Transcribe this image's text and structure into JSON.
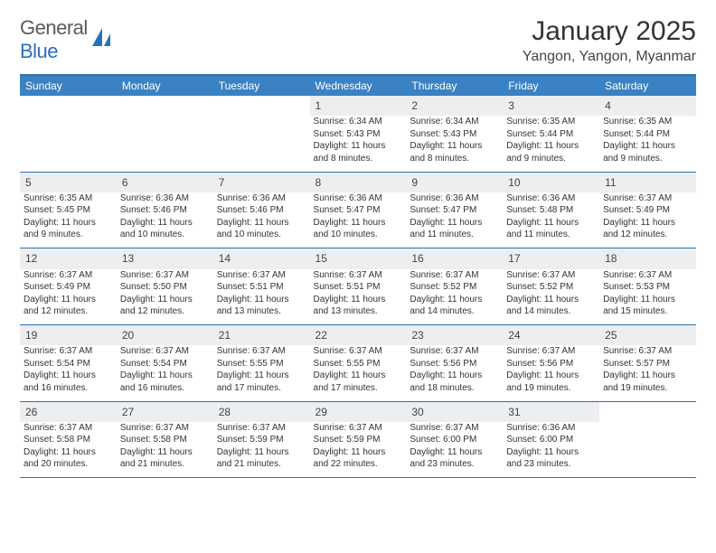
{
  "brand": {
    "name_part1": "General",
    "name_part2": "Blue"
  },
  "title": "January 2025",
  "location": "Yangon, Yangon, Myanmar",
  "colors": {
    "header_bg": "#3b82c4",
    "header_text": "#ffffff",
    "border": "#2b6fbb",
    "daynum_bg": "#eceeef",
    "text": "#333333",
    "logo_gray": "#5a5a5a",
    "logo_blue": "#2b6fbb",
    "page_bg": "#ffffff"
  },
  "typography": {
    "title_fontsize": 30,
    "location_fontsize": 16,
    "dayheader_fontsize": 12,
    "daynum_fontsize": 12,
    "body_fontsize": 10
  },
  "day_headers": [
    "Sunday",
    "Monday",
    "Tuesday",
    "Wednesday",
    "Thursday",
    "Friday",
    "Saturday"
  ],
  "weeks": [
    [
      null,
      null,
      null,
      {
        "n": "1",
        "sunrise": "Sunrise: 6:34 AM",
        "sunset": "Sunset: 5:43 PM",
        "daylight": "Daylight: 11 hours and 8 minutes."
      },
      {
        "n": "2",
        "sunrise": "Sunrise: 6:34 AM",
        "sunset": "Sunset: 5:43 PM",
        "daylight": "Daylight: 11 hours and 8 minutes."
      },
      {
        "n": "3",
        "sunrise": "Sunrise: 6:35 AM",
        "sunset": "Sunset: 5:44 PM",
        "daylight": "Daylight: 11 hours and 9 minutes."
      },
      {
        "n": "4",
        "sunrise": "Sunrise: 6:35 AM",
        "sunset": "Sunset: 5:44 PM",
        "daylight": "Daylight: 11 hours and 9 minutes."
      }
    ],
    [
      {
        "n": "5",
        "sunrise": "Sunrise: 6:35 AM",
        "sunset": "Sunset: 5:45 PM",
        "daylight": "Daylight: 11 hours and 9 minutes."
      },
      {
        "n": "6",
        "sunrise": "Sunrise: 6:36 AM",
        "sunset": "Sunset: 5:46 PM",
        "daylight": "Daylight: 11 hours and 10 minutes."
      },
      {
        "n": "7",
        "sunrise": "Sunrise: 6:36 AM",
        "sunset": "Sunset: 5:46 PM",
        "daylight": "Daylight: 11 hours and 10 minutes."
      },
      {
        "n": "8",
        "sunrise": "Sunrise: 6:36 AM",
        "sunset": "Sunset: 5:47 PM",
        "daylight": "Daylight: 11 hours and 10 minutes."
      },
      {
        "n": "9",
        "sunrise": "Sunrise: 6:36 AM",
        "sunset": "Sunset: 5:47 PM",
        "daylight": "Daylight: 11 hours and 11 minutes."
      },
      {
        "n": "10",
        "sunrise": "Sunrise: 6:36 AM",
        "sunset": "Sunset: 5:48 PM",
        "daylight": "Daylight: 11 hours and 11 minutes."
      },
      {
        "n": "11",
        "sunrise": "Sunrise: 6:37 AM",
        "sunset": "Sunset: 5:49 PM",
        "daylight": "Daylight: 11 hours and 12 minutes."
      }
    ],
    [
      {
        "n": "12",
        "sunrise": "Sunrise: 6:37 AM",
        "sunset": "Sunset: 5:49 PM",
        "daylight": "Daylight: 11 hours and 12 minutes."
      },
      {
        "n": "13",
        "sunrise": "Sunrise: 6:37 AM",
        "sunset": "Sunset: 5:50 PM",
        "daylight": "Daylight: 11 hours and 12 minutes."
      },
      {
        "n": "14",
        "sunrise": "Sunrise: 6:37 AM",
        "sunset": "Sunset: 5:51 PM",
        "daylight": "Daylight: 11 hours and 13 minutes."
      },
      {
        "n": "15",
        "sunrise": "Sunrise: 6:37 AM",
        "sunset": "Sunset: 5:51 PM",
        "daylight": "Daylight: 11 hours and 13 minutes."
      },
      {
        "n": "16",
        "sunrise": "Sunrise: 6:37 AM",
        "sunset": "Sunset: 5:52 PM",
        "daylight": "Daylight: 11 hours and 14 minutes."
      },
      {
        "n": "17",
        "sunrise": "Sunrise: 6:37 AM",
        "sunset": "Sunset: 5:52 PM",
        "daylight": "Daylight: 11 hours and 14 minutes."
      },
      {
        "n": "18",
        "sunrise": "Sunrise: 6:37 AM",
        "sunset": "Sunset: 5:53 PM",
        "daylight": "Daylight: 11 hours and 15 minutes."
      }
    ],
    [
      {
        "n": "19",
        "sunrise": "Sunrise: 6:37 AM",
        "sunset": "Sunset: 5:54 PM",
        "daylight": "Daylight: 11 hours and 16 minutes."
      },
      {
        "n": "20",
        "sunrise": "Sunrise: 6:37 AM",
        "sunset": "Sunset: 5:54 PM",
        "daylight": "Daylight: 11 hours and 16 minutes."
      },
      {
        "n": "21",
        "sunrise": "Sunrise: 6:37 AM",
        "sunset": "Sunset: 5:55 PM",
        "daylight": "Daylight: 11 hours and 17 minutes."
      },
      {
        "n": "22",
        "sunrise": "Sunrise: 6:37 AM",
        "sunset": "Sunset: 5:55 PM",
        "daylight": "Daylight: 11 hours and 17 minutes."
      },
      {
        "n": "23",
        "sunrise": "Sunrise: 6:37 AM",
        "sunset": "Sunset: 5:56 PM",
        "daylight": "Daylight: 11 hours and 18 minutes."
      },
      {
        "n": "24",
        "sunrise": "Sunrise: 6:37 AM",
        "sunset": "Sunset: 5:56 PM",
        "daylight": "Daylight: 11 hours and 19 minutes."
      },
      {
        "n": "25",
        "sunrise": "Sunrise: 6:37 AM",
        "sunset": "Sunset: 5:57 PM",
        "daylight": "Daylight: 11 hours and 19 minutes."
      }
    ],
    [
      {
        "n": "26",
        "sunrise": "Sunrise: 6:37 AM",
        "sunset": "Sunset: 5:58 PM",
        "daylight": "Daylight: 11 hours and 20 minutes."
      },
      {
        "n": "27",
        "sunrise": "Sunrise: 6:37 AM",
        "sunset": "Sunset: 5:58 PM",
        "daylight": "Daylight: 11 hours and 21 minutes."
      },
      {
        "n": "28",
        "sunrise": "Sunrise: 6:37 AM",
        "sunset": "Sunset: 5:59 PM",
        "daylight": "Daylight: 11 hours and 21 minutes."
      },
      {
        "n": "29",
        "sunrise": "Sunrise: 6:37 AM",
        "sunset": "Sunset: 5:59 PM",
        "daylight": "Daylight: 11 hours and 22 minutes."
      },
      {
        "n": "30",
        "sunrise": "Sunrise: 6:37 AM",
        "sunset": "Sunset: 6:00 PM",
        "daylight": "Daylight: 11 hours and 23 minutes."
      },
      {
        "n": "31",
        "sunrise": "Sunrise: 6:36 AM",
        "sunset": "Sunset: 6:00 PM",
        "daylight": "Daylight: 11 hours and 23 minutes."
      },
      null
    ]
  ]
}
